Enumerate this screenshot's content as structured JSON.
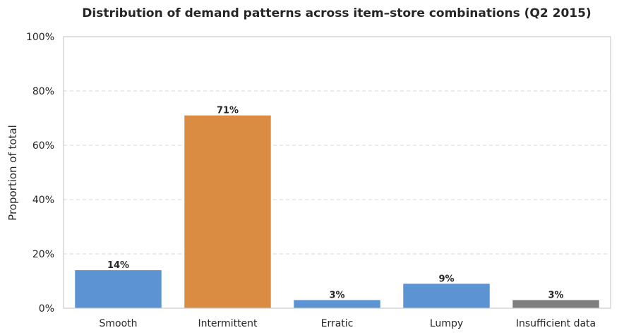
{
  "chart_data": {
    "type": "bar",
    "title": "Distribution of demand patterns across item–store combinations (Q2 2015)",
    "xlabel": "",
    "ylabel": "Proportion of total",
    "categories": [
      "Smooth",
      "Intermittent",
      "Erratic",
      "Lumpy",
      "Insufficient data"
    ],
    "values": [
      14,
      71,
      3,
      9,
      3
    ],
    "data_labels": [
      "14%",
      "71%",
      "3%",
      "9%",
      "3%"
    ],
    "colors": [
      "#5b93d3",
      "#db8c43",
      "#5b93d3",
      "#5b93d3",
      "#7f7f7f"
    ],
    "ylim": [
      0,
      100
    ],
    "yticks": [
      0,
      20,
      40,
      60,
      80,
      100
    ],
    "ytick_labels": [
      "0%",
      "20%",
      "40%",
      "60%",
      "80%",
      "100%"
    ],
    "grid": "horizontal dashed",
    "legend": "none"
  }
}
